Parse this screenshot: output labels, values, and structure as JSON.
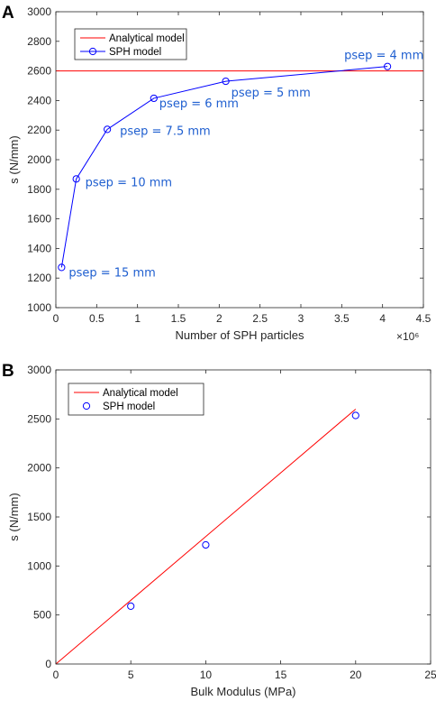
{
  "chart_data": [
    {
      "panel": "A",
      "type": "line",
      "xlabel": "Number of SPH particles",
      "ylabel": "s (N/mm)",
      "xlim": [
        0,
        4.5
      ],
      "ylim": [
        1000,
        3000
      ],
      "x_multiplier": "×10⁶",
      "xticks": [
        "0",
        "0.5",
        "1",
        "1.5",
        "2",
        "2.5",
        "3",
        "3.5",
        "4",
        "4.5"
      ],
      "yticks": [
        "1000",
        "1200",
        "1400",
        "1600",
        "1800",
        "2000",
        "2200",
        "2400",
        "2600",
        "2800",
        "3000"
      ],
      "legend_position": "top-left",
      "series": [
        {
          "name": "Analytical model",
          "kind": "line",
          "color": "#ff0000",
          "x": [
            0,
            4.5
          ],
          "y": [
            2600,
            2600
          ]
        },
        {
          "name": "SPH model",
          "kind": "line-marker",
          "color": "#0000ff",
          "x": [
            0.07,
            0.25,
            0.63,
            1.2,
            2.08,
            4.06
          ],
          "y": [
            1272,
            1870,
            2205,
            2415,
            2530,
            2630
          ]
        }
      ],
      "annotations": [
        {
          "text": "psep = 15 mm",
          "x": 0.07,
          "y": 1272
        },
        {
          "text": "psep = 10 mm",
          "x": 0.25,
          "y": 1870
        },
        {
          "text": "psep = 7.5 mm",
          "x": 0.63,
          "y": 2205
        },
        {
          "text": "psep = 6 mm",
          "x": 1.2,
          "y": 2415
        },
        {
          "text": "psep = 5 mm",
          "x": 2.08,
          "y": 2530
        },
        {
          "text": "psep = 4 mm",
          "x": 4.06,
          "y": 2630
        }
      ]
    },
    {
      "panel": "B",
      "type": "scatter",
      "xlabel": "Bulk Modulus (MPa)",
      "ylabel": "s (N/mm)",
      "xlim": [
        0,
        25
      ],
      "ylim": [
        0,
        3000
      ],
      "xticks": [
        "0",
        "5",
        "10",
        "15",
        "20",
        "25"
      ],
      "yticks": [
        "0",
        "500",
        "1000",
        "1500",
        "2000",
        "2500",
        "3000"
      ],
      "legend_position": "top-left",
      "series": [
        {
          "name": "Analytical model",
          "kind": "line",
          "color": "#ff0000",
          "x": [
            0,
            20
          ],
          "y": [
            0,
            2600
          ]
        },
        {
          "name": "SPH model",
          "kind": "marker",
          "color": "#0000ff",
          "x": [
            5,
            10,
            20
          ],
          "y": [
            590,
            1215,
            2535
          ]
        }
      ]
    }
  ]
}
